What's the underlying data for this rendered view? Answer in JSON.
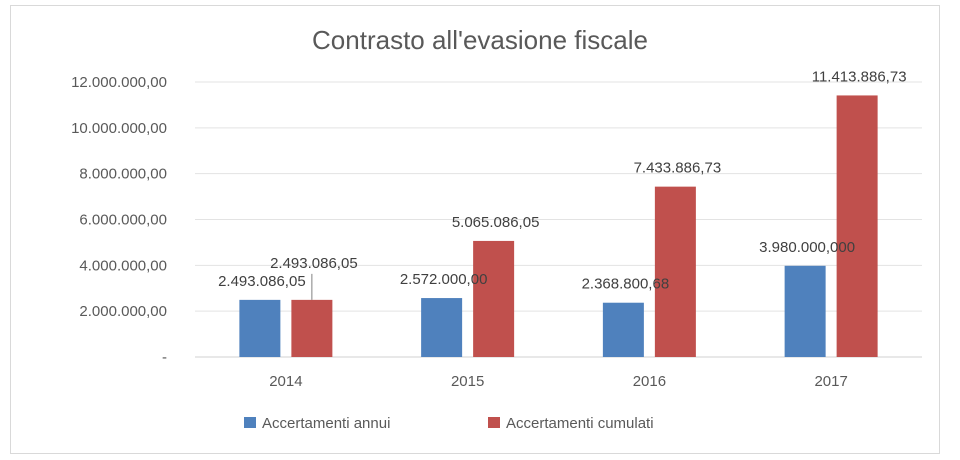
{
  "chart_data": {
    "type": "bar",
    "title": "Contrasto all'evasione fiscale",
    "xlabel": "",
    "ylabel": "",
    "ylim": [
      0,
      12000000
    ],
    "grid": true,
    "legend_position": "bottom",
    "categories": [
      "2014",
      "2015",
      "2016",
      "2017"
    ],
    "y_ticks": [
      {
        "value": 0,
        "label": "-"
      },
      {
        "value": 2000000,
        "label": "2.000.000,00"
      },
      {
        "value": 4000000,
        "label": "4.000.000,00"
      },
      {
        "value": 6000000,
        "label": "6.000.000,00"
      },
      {
        "value": 8000000,
        "label": "8.000.000,00"
      },
      {
        "value": 10000000,
        "label": "10.000.000,00"
      },
      {
        "value": 12000000,
        "label": "12.000.000,00"
      }
    ],
    "series": [
      {
        "name": "Accertamenti annui",
        "color": "#4f81bd",
        "values": [
          2493086.05,
          2572000.0,
          2368800.68,
          3980000.0
        ],
        "labels": [
          "2.493.086,05",
          "2.572.000,00",
          "2.368.800,68",
          "3.980.000,000"
        ]
      },
      {
        "name": "Accertamenti cumulati",
        "color": "#c0504d",
        "values": [
          2493086.05,
          5065086.05,
          7433886.73,
          11413886.73
        ],
        "labels": [
          "2.493.086,05",
          "5.065.086,05",
          "7.433.886,73",
          "11.413.886,73"
        ]
      }
    ]
  }
}
